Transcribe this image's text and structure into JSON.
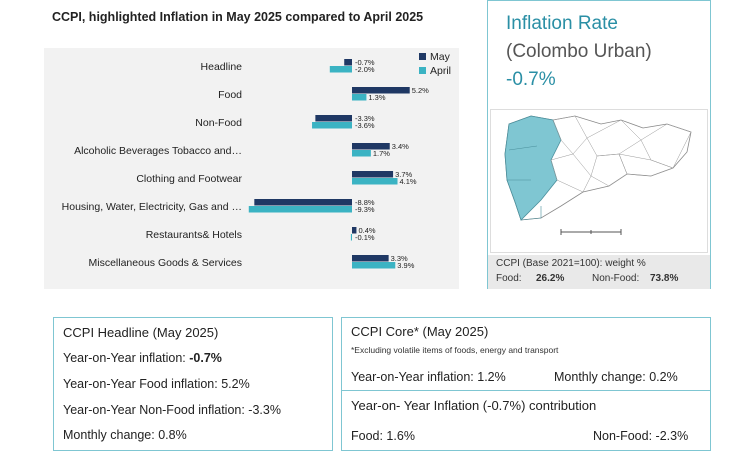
{
  "chart_data": {
    "type": "bar",
    "orientation": "horizontal",
    "title": "CCPI, highlighted Inflation in May 2025 compared to April 2025",
    "categories": [
      "Headline",
      "Food",
      "Non-Food",
      "Alcoholic Beverages Tobacco and…",
      "Clothing and Footwear",
      "Housing, Water, Electricity, Gas and …",
      "Restaurants& Hotels",
      "Miscellaneous Goods & Services"
    ],
    "series": [
      {
        "name": "May",
        "color": "#1f3864",
        "values": [
          -0.7,
          5.2,
          -3.3,
          3.4,
          3.7,
          -8.8,
          0.4,
          3.3
        ],
        "labels": [
          "-0.7%",
          "5.2%",
          "-3.3%",
          "3.4%",
          "3.7%",
          "-8.8%",
          "0.4%",
          "3.3%"
        ]
      },
      {
        "name": "April",
        "color": "#3bb3c3",
        "values": [
          -2.0,
          1.3,
          -3.6,
          1.7,
          4.1,
          -9.3,
          -0.1,
          3.9
        ],
        "labels": [
          "-2.0%",
          "1.3%",
          "-3.6%",
          "1.7%",
          "4.1%",
          "-9.3%",
          "-0.1%",
          "3.9%"
        ]
      }
    ],
    "xlim": [
      -10,
      7
    ],
    "legend_position": "top-right",
    "grid": false
  },
  "inflation_rate": {
    "title": "Inflation Rate",
    "subtitle": "(Colombo Urban)",
    "value": "-0.7%"
  },
  "map": {
    "icon": "sri-lanka-map-colombo-highlight",
    "highlight_color": "#7fc6d2"
  },
  "weights": {
    "title": "CCPI (Base 2021=100): weight %",
    "food_label": "Food:",
    "food_value": "26.2%",
    "nonfood_label": "Non-Food:",
    "nonfood_value": "73.8%"
  },
  "headline": {
    "title": "CCPI Headline (May 2025)",
    "yoy_label": "Year-on-Year inflation: ",
    "yoy_value": "-0.7%",
    "food_line": "Year-on-Year Food inflation: 5.2%",
    "nonfood_line": "Year-on-Year Non-Food inflation: -3.3%",
    "monthly_line": "Monthly change:  0.8%"
  },
  "core": {
    "title": "CCPI Core* (May 2025)",
    "note": "*Excluding volatile items of foods, energy and transport",
    "yoy_line": "Year-on-Year inflation: 1.2%",
    "monthly_line": "Monthly change:  0.2%"
  },
  "contribution": {
    "title": "Year-on- Year Inflation (-0.7%) contribution",
    "food_line": "Food: 1.6%",
    "nonfood_line": "Non-Food: -2.3%"
  }
}
